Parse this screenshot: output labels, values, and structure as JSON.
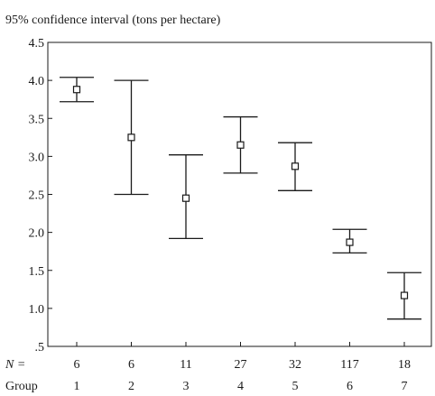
{
  "chart_data": {
    "type": "errorbar",
    "title": "95% confidence interval (tons per hectare)",
    "ylim": [
      0.5,
      4.5
    ],
    "yticks": [
      {
        "value": 0.5,
        "label": ".5"
      },
      {
        "value": 1.0,
        "label": "1.0"
      },
      {
        "value": 1.5,
        "label": "1.5"
      },
      {
        "value": 2.0,
        "label": "2.0"
      },
      {
        "value": 2.5,
        "label": "2.5"
      },
      {
        "value": 3.0,
        "label": "3.0"
      },
      {
        "value": 3.5,
        "label": "3.5"
      },
      {
        "value": 4.0,
        "label": "4.0"
      },
      {
        "value": 4.5,
        "label": "4.5"
      }
    ],
    "n_label": "N =",
    "group_label": "Group",
    "groups": [
      {
        "group": "1",
        "n": "6",
        "mean": 3.88,
        "lower": 3.72,
        "upper": 4.04
      },
      {
        "group": "2",
        "n": "6",
        "mean": 3.25,
        "lower": 2.5,
        "upper": 4.0
      },
      {
        "group": "3",
        "n": "11",
        "mean": 2.45,
        "lower": 1.92,
        "upper": 3.02
      },
      {
        "group": "4",
        "n": "27",
        "mean": 3.15,
        "lower": 2.78,
        "upper": 3.52
      },
      {
        "group": "5",
        "n": "32",
        "mean": 2.87,
        "lower": 2.55,
        "upper": 3.18
      },
      {
        "group": "6",
        "n": "117",
        "mean": 1.87,
        "lower": 1.73,
        "upper": 2.04
      },
      {
        "group": "7",
        "n": "18",
        "mean": 1.17,
        "lower": 0.86,
        "upper": 1.47
      }
    ]
  }
}
